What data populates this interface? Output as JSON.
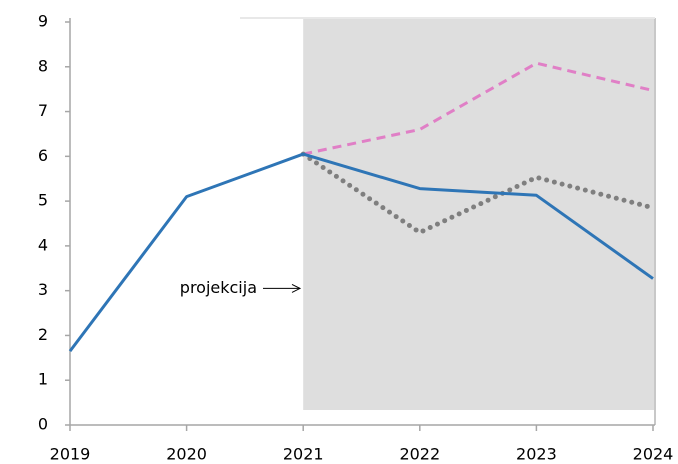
{
  "chart_data": {
    "type": "line",
    "x": [
      2019,
      2020,
      2021,
      2022,
      2023,
      2024
    ],
    "xlim": [
      2019,
      2024
    ],
    "xticks": [
      2019,
      2020,
      2021,
      2022,
      2023,
      2024
    ],
    "ylim": [
      0,
      9
    ],
    "yticks": [
      0,
      1,
      2,
      3,
      4,
      5,
      6,
      7,
      8,
      9
    ],
    "shade_x": [
      2021,
      2024
    ],
    "annotation": "projekcija",
    "series": [
      {
        "color": "#e07fc6",
        "style": "dashed",
        "values": [
          null,
          null,
          6.05,
          6.6,
          8.08,
          7.47
        ]
      },
      {
        "color": "#7f7f7f",
        "style": "dotted",
        "values": [
          null,
          null,
          6.05,
          4.3,
          5.53,
          4.85
        ]
      },
      {
        "color": "#2e75b6",
        "style": "solid",
        "values": [
          1.65,
          5.1,
          6.05,
          5.28,
          5.13,
          3.27
        ]
      }
    ]
  }
}
